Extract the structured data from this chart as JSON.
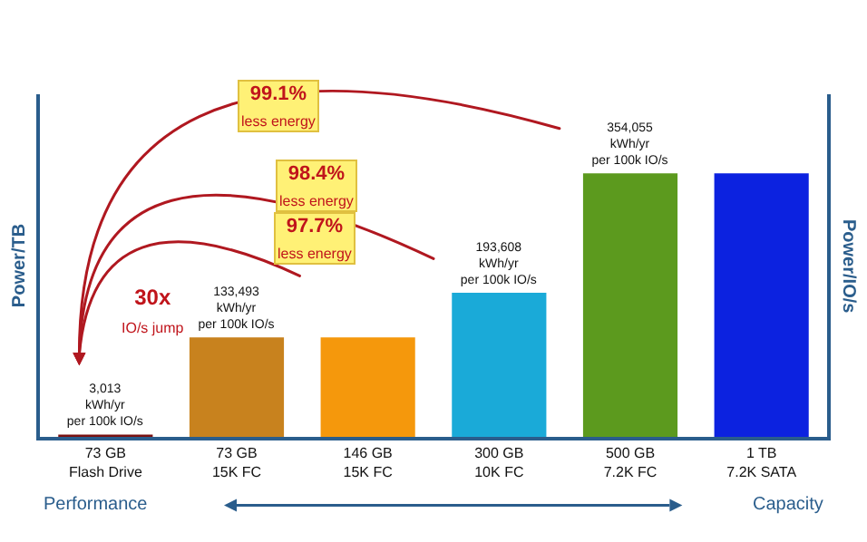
{
  "chart_data": {
    "type": "bar",
    "ylabel": "Power/TB",
    "y2label": "Power/IO/s",
    "categories": [
      "73 GB\nFlash Drive",
      "73 GB\n15K FC",
      "146 GB\n15K FC",
      "300 GB\n10K FC",
      "500 GB\n7.2K FC",
      "1 TB\n7.2K SATA"
    ],
    "values": [
      3013,
      133493,
      133493,
      193608,
      354055,
      354055
    ],
    "colors": [
      "#7a1212",
      "#c8821e",
      "#f5980c",
      "#1aaad8",
      "#5c9a1e",
      "#0c22e0"
    ],
    "value_labels": [
      "3,013\nkWh/yr\nper 100k IO/s",
      "133,493\nkWh/yr\nper 100k IO/s",
      null,
      "193,608\nkWh/yr\nper 100k IO/s",
      "354,055\nkWh/yr\nper 100k IO/s",
      null
    ],
    "annotations": [
      "99.1%\nless energy",
      "98.4%\nless energy",
      "97.7%\nless energy",
      "30x\nIO/s jump",
      "Performance",
      "Capacity"
    ],
    "grid": false
  }
}
